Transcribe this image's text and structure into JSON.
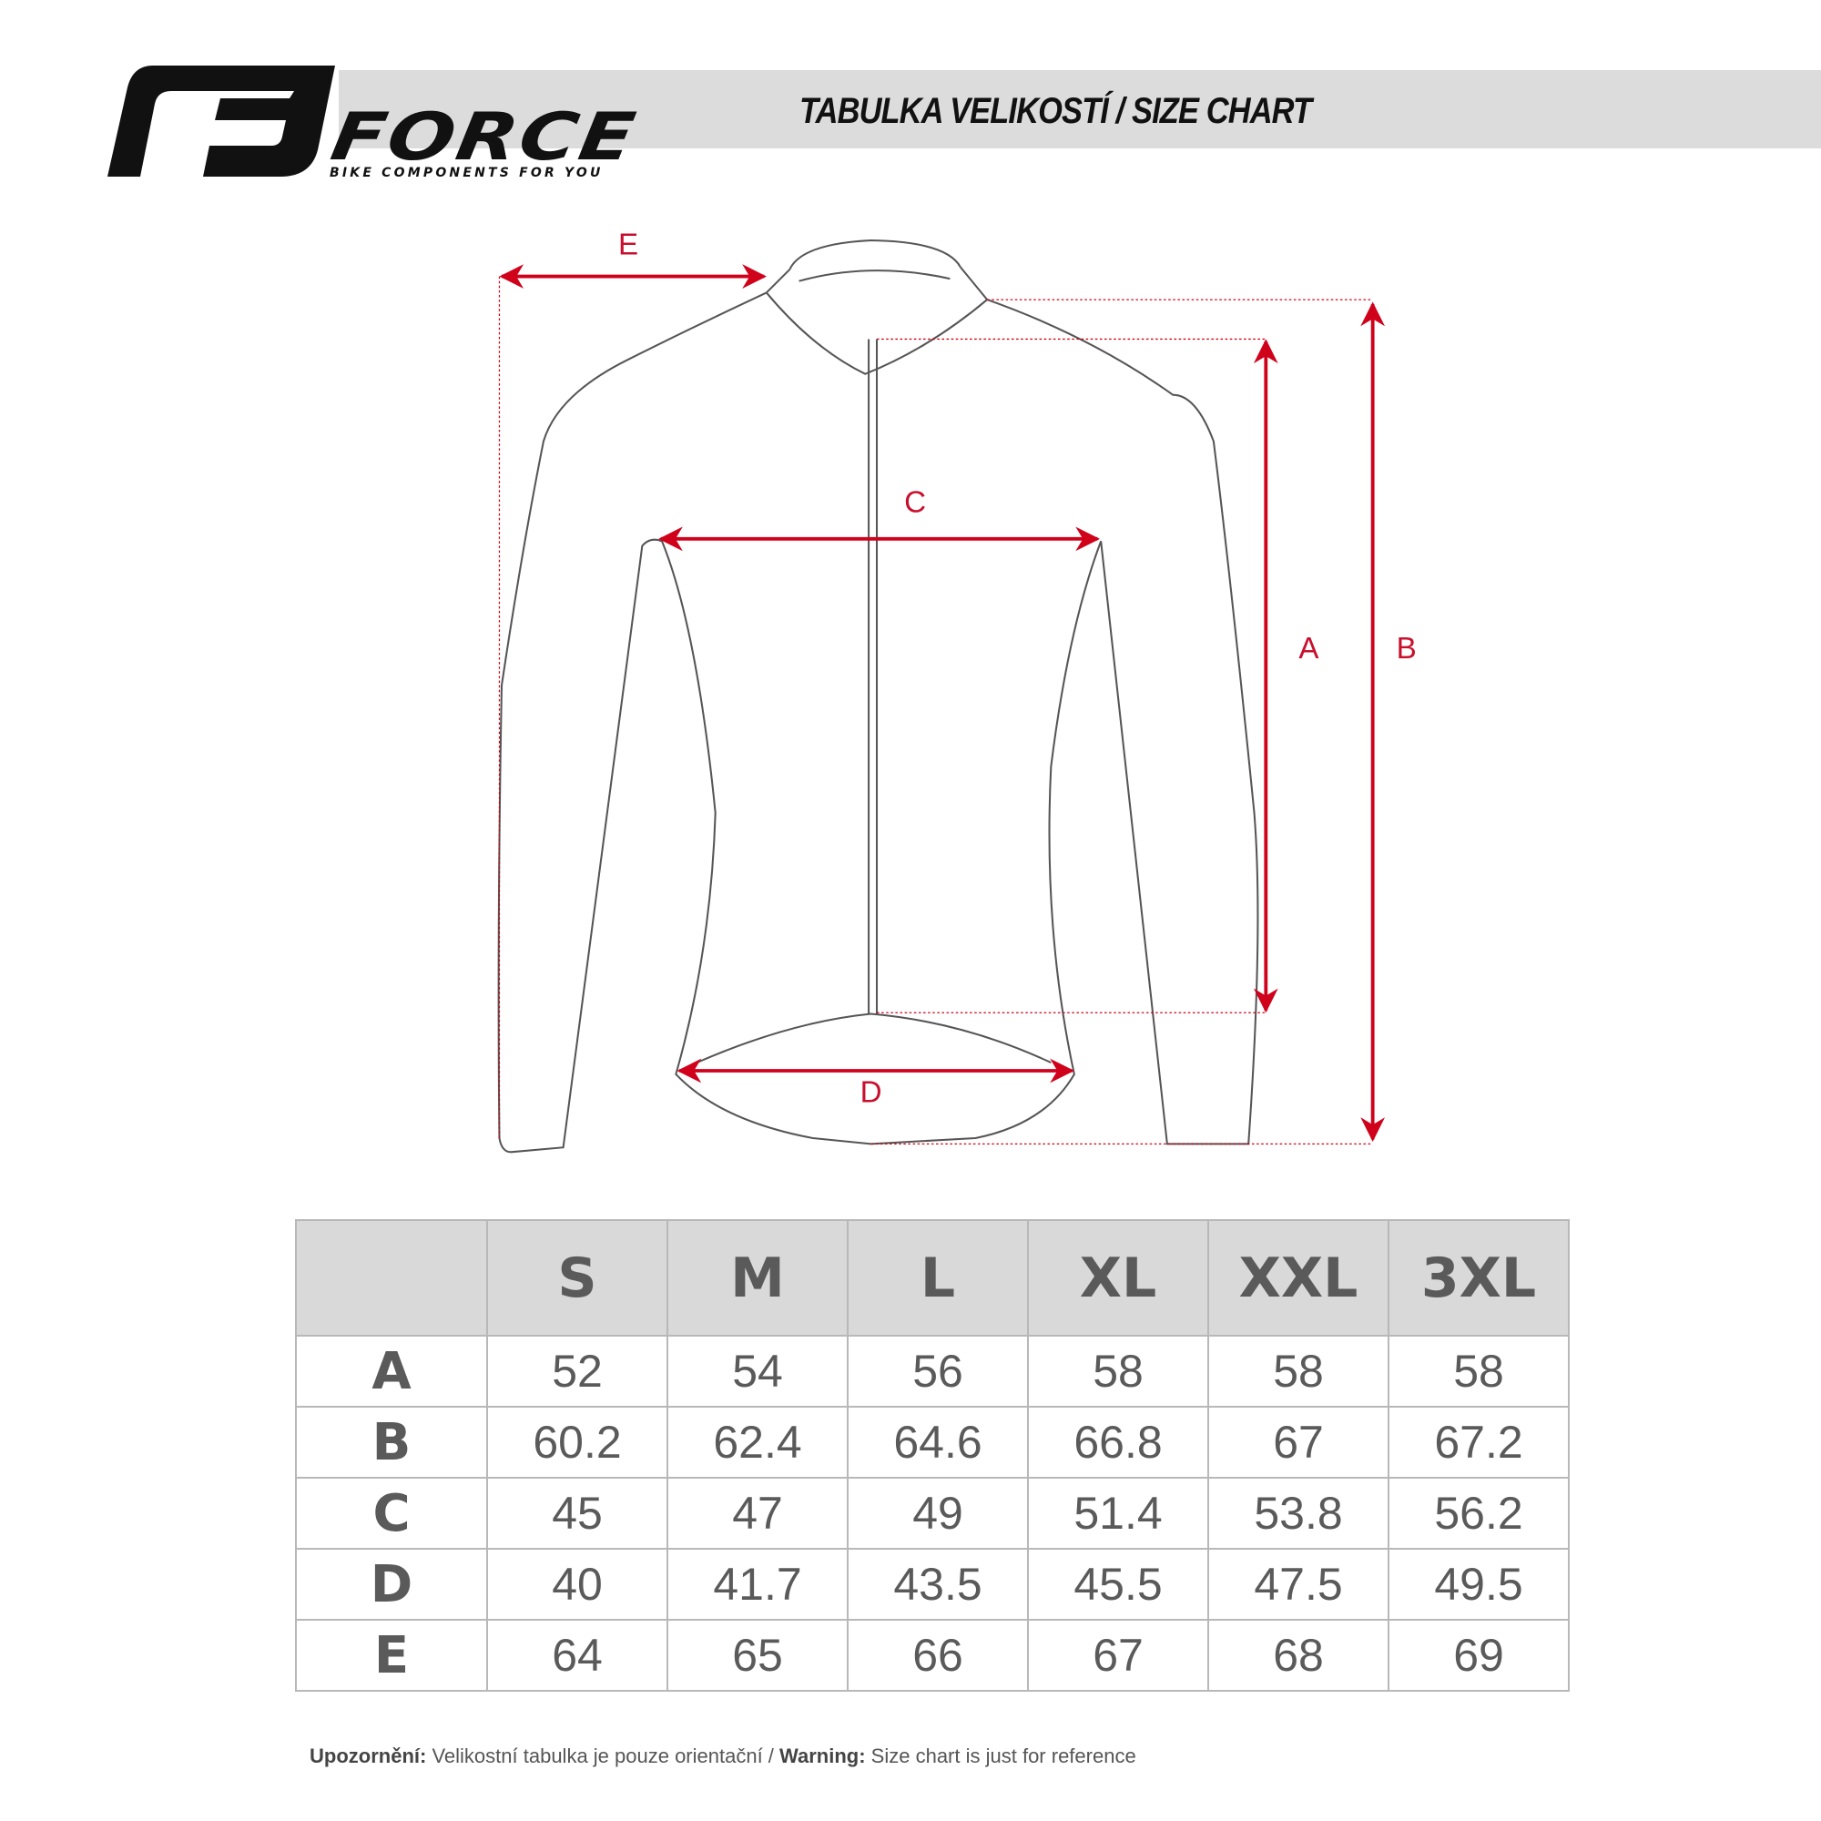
{
  "header": {
    "brand": "FORCE",
    "tagline": "BIKE COMPONENTS FOR YOU",
    "title": "TABULKA VELIKOSTÍ / SIZE CHART"
  },
  "diagram": {
    "labels": {
      "A": "A",
      "B": "B",
      "C": "C",
      "D": "D",
      "E": "E"
    },
    "accent_color": "#d0021b"
  },
  "table": {
    "columns": [
      "S",
      "M",
      "L",
      "XL",
      "XXL",
      "3XL"
    ],
    "rows": [
      {
        "label": "A",
        "values": [
          "52",
          "54",
          "56",
          "58",
          "58",
          "58"
        ]
      },
      {
        "label": "B",
        "values": [
          "60.2",
          "62.4",
          "64.6",
          "66.8",
          "67",
          "67.2"
        ]
      },
      {
        "label": "C",
        "values": [
          "45",
          "47",
          "49",
          "51.4",
          "53.8",
          "56.2"
        ]
      },
      {
        "label": "D",
        "values": [
          "40",
          "41.7",
          "43.5",
          "45.5",
          "47.5",
          "49.5"
        ]
      },
      {
        "label": "E",
        "values": [
          "64",
          "65",
          "66",
          "67",
          "68",
          "69"
        ]
      }
    ]
  },
  "footer": {
    "warning_cz_label": "Upozornění:",
    "warning_cz_text": "Velikostní tabulka je pouze orientační /",
    "warning_en_label": "Warning:",
    "warning_en_text": "Size chart is just for reference"
  }
}
